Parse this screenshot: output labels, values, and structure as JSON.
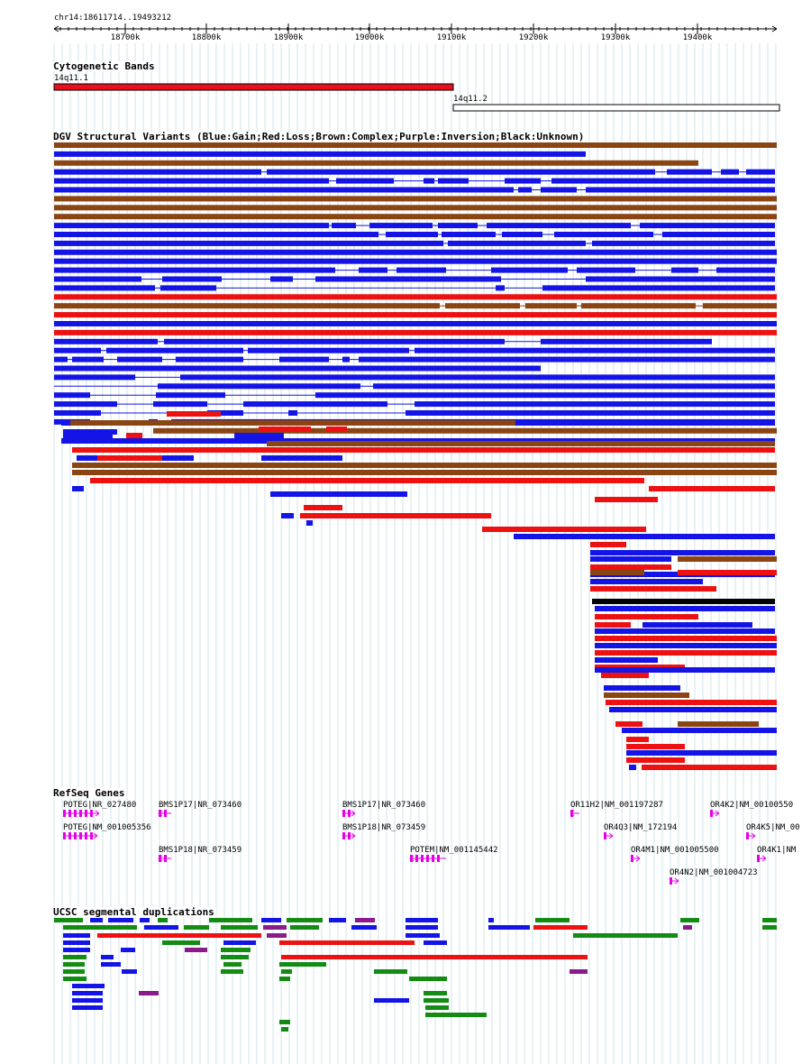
{
  "region": "chr14:18611714..19493212",
  "ruler": {
    "ticks": [
      "18700k",
      "18800k",
      "18900k",
      "19000k",
      "19100k",
      "19200k",
      "19300k",
      "19400k"
    ]
  },
  "cytoband_track": {
    "title": "Cytogenetic Bands",
    "bands": [
      {
        "name": "14q11.1",
        "color": "#e8101e"
      },
      {
        "name": "14q11.2",
        "color": "#ffffff"
      }
    ]
  },
  "dgv_track": {
    "title": "DGV Structural Variants (Blue:Gain;Red:Loss;Brown:Complex;Purple:Inversion;Black:Unknown)",
    "legend_colors": {
      "Gain": "#1414e6",
      "Loss": "#ee1111",
      "Complex": "#8b4513",
      "Inversion": "#800080",
      "Unknown": "#000000"
    }
  },
  "refseq_track": {
    "title": "RefSeq Genes",
    "gene_color": "#e600e6",
    "genes": [
      {
        "label": "POTEG|NR_027480",
        "strand": "+"
      },
      {
        "label": "POTEG|NM_001005356",
        "strand": "+"
      },
      {
        "label": "BMS1P17|NR_073460",
        "strand": "-"
      },
      {
        "label": "BMS1P18|NR_073459",
        "strand": "-"
      },
      {
        "label": "BMS1P17|NR_073460",
        "strand": "+"
      },
      {
        "label": "BMS1P18|NR_073459",
        "strand": "+"
      },
      {
        "label": "POTEM|NM_001145442",
        "strand": "-"
      },
      {
        "label": "OR11H2|NM_001197287",
        "strand": "-"
      },
      {
        "label": "OR4Q3|NM_172194",
        "strand": "+"
      },
      {
        "label": "OR4M1|NM_001005500",
        "strand": "+"
      },
      {
        "label": "OR4N2|NM_001004723",
        "strand": "+"
      },
      {
        "label": "OR4K2|NM_00100550",
        "strand": "+"
      },
      {
        "label": "OR4K5|NM_00",
        "strand": "+"
      },
      {
        "label": "OR4K1|NM",
        "strand": "+"
      }
    ]
  },
  "segdup_track": {
    "title": "UCSC segmental duplications",
    "colors": {
      "green": "#148c14",
      "blue": "#1414e6",
      "red": "#ee1111",
      "purple": "#8b1a8b"
    }
  }
}
